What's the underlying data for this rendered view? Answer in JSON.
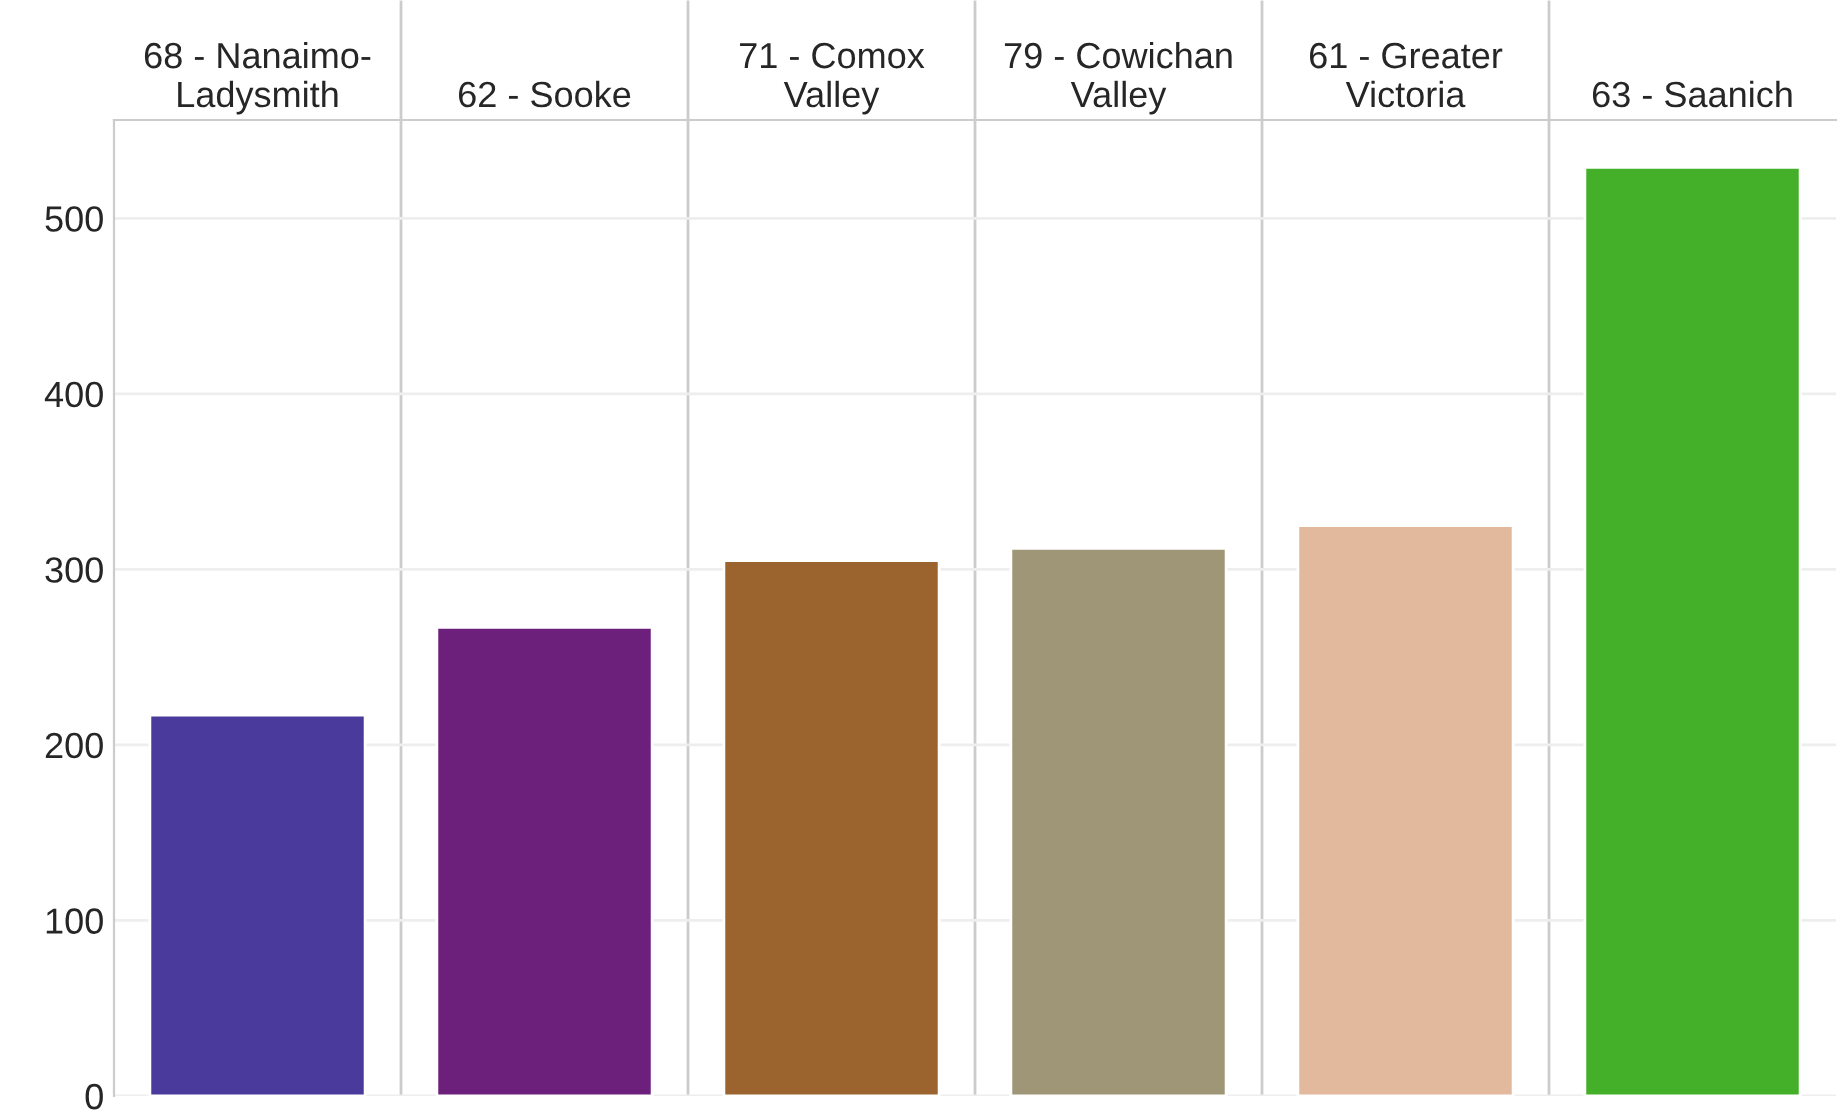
{
  "chart_data": {
    "type": "bar",
    "categories": [
      "68 - Nanaimo-\nLadysmith",
      "62 - Sooke",
      "71 - Comox\nValley",
      "79 - Cowichan\nValley",
      "61 - Greater\nVictoria",
      "63 - Saanich"
    ],
    "values": [
      217,
      267,
      305,
      312,
      325,
      529
    ],
    "colors": [
      "#4a3a9b",
      "#6c207b",
      "#9b642f",
      "#9f9677",
      "#e2b99c",
      "#44b02a"
    ],
    "ylim": [
      0,
      556
    ],
    "yticks": [
      0,
      100,
      200,
      300,
      400,
      500
    ],
    "grid": "y"
  }
}
